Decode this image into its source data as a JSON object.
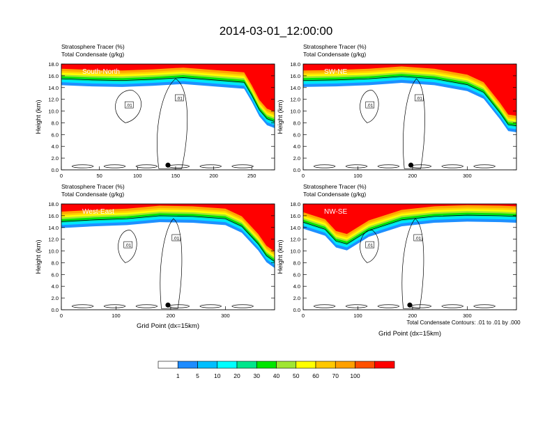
{
  "figure_title": "2014-03-01_12:00:00",
  "panel_line1": "Stratosphere Tracer   (%)",
  "panel_line2": "Total Condensate   (g/kg)",
  "ylabel": "Height (km)",
  "xlabel": "Grid Point (dx=15km)",
  "contour_note": "Total Condensate Contours: .01 to .01 by .000",
  "contour_label": ".01",
  "colors": {
    "white": "#ffffff",
    "blue": "#1e90ff",
    "cyan": "#00e5ff",
    "teal": "#00e6a0",
    "green": "#00e600",
    "lime": "#a0e632",
    "yellow": "#ffff00",
    "gold": "#ffd200",
    "orange": "#ffa500",
    "red": "#ff0000"
  },
  "colorbar": {
    "labels": [
      "1",
      "5",
      "10",
      "20",
      "30",
      "40",
      "50",
      "60",
      "70",
      "100"
    ],
    "colors": [
      "#ffffff",
      "#1e8cff",
      "#00bfff",
      "#00ffff",
      "#00e68c",
      "#00e600",
      "#a0e632",
      "#ffff00",
      "#ffc800",
      "#ffa000",
      "#ff5000",
      "#ff0000"
    ]
  },
  "chart_data": [
    {
      "type": "heatmap",
      "label": "South-North",
      "xticks": [
        "0",
        "50",
        "100",
        "150",
        "200",
        "250"
      ],
      "xtick_values": [
        0,
        50,
        100,
        150,
        200,
        250
      ],
      "xlim": [
        0,
        280
      ],
      "yticks": [
        "0.0",
        "2.0",
        "4.0",
        "6.0",
        "8.0",
        "10.0",
        "12.0",
        "14.0",
        "16.0",
        "18.0"
      ],
      "ylim": [
        0,
        18
      ],
      "marker_x": 140,
      "tropopause": [
        [
          0,
          15.8
        ],
        [
          40,
          15.6
        ],
        [
          80,
          15.5
        ],
        [
          120,
          15.7
        ],
        [
          160,
          16.0
        ],
        [
          200,
          15.6
        ],
        [
          240,
          15.2
        ],
        [
          250,
          13.0
        ],
        [
          260,
          10.5
        ],
        [
          270,
          9.0
        ],
        [
          280,
          8.5
        ]
      ]
    },
    {
      "type": "heatmap",
      "label": "SW-NE",
      "xticks": [
        "0",
        "100",
        "200",
        "300"
      ],
      "xtick_values": [
        0,
        100,
        200,
        300
      ],
      "xlim": [
        0,
        390
      ],
      "yticks": [
        "0.0",
        "2.0",
        "4.0",
        "6.0",
        "8.0",
        "10.0",
        "12.0",
        "14.0",
        "16.0",
        "18.0"
      ],
      "ylim": [
        0,
        18
      ],
      "marker_x": 197,
      "tropopause": [
        [
          0,
          15.5
        ],
        [
          60,
          15.6
        ],
        [
          120,
          15.8
        ],
        [
          180,
          16.2
        ],
        [
          240,
          15.8
        ],
        [
          300,
          14.8
        ],
        [
          330,
          13.5
        ],
        [
          360,
          10.0
        ],
        [
          375,
          8.0
        ],
        [
          390,
          7.8
        ]
      ]
    },
    {
      "type": "heatmap",
      "label": "West-East",
      "xticks": [
        "0",
        "100",
        "200",
        "300"
      ],
      "xtick_values": [
        0,
        100,
        200,
        300
      ],
      "xlim": [
        0,
        390
      ],
      "yticks": [
        "0.0",
        "2.0",
        "4.0",
        "6.0",
        "8.0",
        "10.0",
        "12.0",
        "14.0",
        "16.0",
        "18.0"
      ],
      "ylim": [
        0,
        18
      ],
      "marker_x": 195,
      "tropopause": [
        [
          0,
          15.3
        ],
        [
          60,
          15.6
        ],
        [
          120,
          15.8
        ],
        [
          180,
          16.3
        ],
        [
          240,
          16.2
        ],
        [
          300,
          15.8
        ],
        [
          330,
          14.5
        ],
        [
          360,
          11.5
        ],
        [
          375,
          9.5
        ],
        [
          390,
          8.5
        ]
      ]
    },
    {
      "type": "heatmap",
      "label": "NW-SE",
      "xticks": [
        "0",
        "100",
        "200",
        "300"
      ],
      "xtick_values": [
        0,
        100,
        200,
        300
      ],
      "xlim": [
        0,
        390
      ],
      "yticks": [
        "0.0",
        "2.0",
        "4.0",
        "6.0",
        "8.0",
        "10.0",
        "12.0",
        "14.0",
        "16.0",
        "18.0"
      ],
      "ylim": [
        0,
        18
      ],
      "marker_x": 195,
      "tropopause": [
        [
          0,
          15.2
        ],
        [
          40,
          14.0
        ],
        [
          60,
          12.0
        ],
        [
          80,
          11.5
        ],
        [
          120,
          13.8
        ],
        [
          180,
          15.6
        ],
        [
          240,
          16.2
        ],
        [
          300,
          16.4
        ],
        [
          360,
          16.3
        ],
        [
          390,
          16.2
        ]
      ]
    }
  ]
}
